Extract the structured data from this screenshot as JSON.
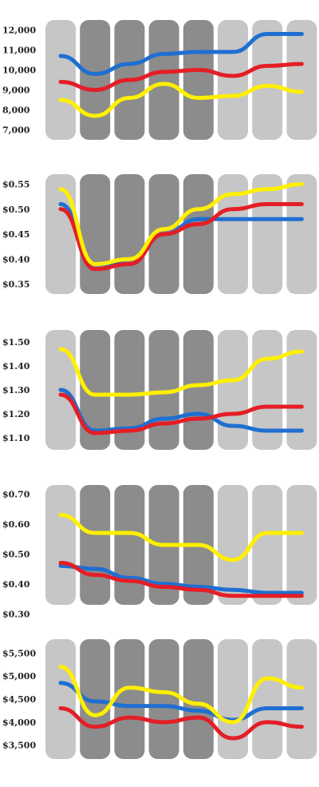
{
  "colors": {
    "light_column": "#c6c6c6",
    "dark_column": "#8c8c8c",
    "blue": "#1f6fd1",
    "red": "#e41e26",
    "yellow": "#ffef00",
    "title": "#e8401c"
  },
  "footer": "",
  "chart_data": [
    {
      "type": "line",
      "title": "",
      "ylim": [
        6500,
        12500
      ],
      "yticks": [
        "12,000",
        "11,000",
        "10,000",
        "9,000",
        "8,000",
        "7,000"
      ],
      "ytick_values": [
        12000,
        11000,
        10000,
        9000,
        8000,
        7000
      ],
      "x": [
        "",
        "",
        "",
        "",
        "",
        "",
        "",
        ""
      ],
      "series": [
        {
          "color": "blue",
          "values": [
            10700,
            9800,
            10300,
            10800,
            10900,
            10900,
            11800,
            11800
          ]
        },
        {
          "color": "red",
          "values": [
            9400,
            9000,
            9500,
            9900,
            10000,
            9700,
            10200,
            10300
          ]
        },
        {
          "color": "yellow",
          "values": [
            8500,
            7700,
            8600,
            9300,
            8600,
            8700,
            9200,
            8900
          ]
        }
      ]
    },
    {
      "type": "line",
      "title": "",
      "ylim": [
        0.33,
        0.57
      ],
      "yticks": [
        "$0.55",
        "$0.50",
        "$0.45",
        "$0.40",
        "$0.35"
      ],
      "ytick_values": [
        0.55,
        0.5,
        0.45,
        0.4,
        0.35
      ],
      "x": [
        "",
        "",
        "",
        "",
        "",
        "",
        "",
        ""
      ],
      "series": [
        {
          "color": "blue",
          "values": [
            0.51,
            0.39,
            0.39,
            0.45,
            0.48,
            0.48,
            0.48,
            0.48
          ]
        },
        {
          "color": "red",
          "values": [
            0.5,
            0.38,
            0.39,
            0.45,
            0.47,
            0.5,
            0.51,
            0.51
          ]
        },
        {
          "color": "yellow",
          "values": [
            0.54,
            0.39,
            0.4,
            0.46,
            0.5,
            0.53,
            0.54,
            0.55
          ]
        }
      ]
    },
    {
      "type": "line",
      "title": "",
      "ylim": [
        1.05,
        1.55
      ],
      "yticks": [
        "$1.50",
        "$1.40",
        "$1.30",
        "$1.20",
        "$1.10"
      ],
      "ytick_values": [
        1.5,
        1.4,
        1.3,
        1.2,
        1.1
      ],
      "x": [
        "",
        "",
        "",
        "",
        "",
        "",
        "",
        ""
      ],
      "series": [
        {
          "color": "blue",
          "values": [
            1.3,
            1.13,
            1.14,
            1.18,
            1.2,
            1.15,
            1.13,
            1.13
          ]
        },
        {
          "color": "red",
          "values": [
            1.28,
            1.12,
            1.13,
            1.16,
            1.18,
            1.2,
            1.23,
            1.23
          ]
        },
        {
          "color": "yellow",
          "values": [
            1.47,
            1.28,
            1.28,
            1.29,
            1.32,
            1.34,
            1.43,
            1.46
          ]
        }
      ]
    },
    {
      "type": "line",
      "title": "",
      "ylim": [
        0.33,
        0.73
      ],
      "yticks": [
        "$0.70",
        "$0.60",
        "$0.50",
        "$0.40",
        "$0.30"
      ],
      "ytick_values": [
        0.7,
        0.6,
        0.5,
        0.4,
        0.3
      ],
      "x": [
        "",
        "",
        "",
        "",
        "",
        "",
        "",
        ""
      ],
      "series": [
        {
          "color": "blue",
          "values": [
            0.46,
            0.45,
            0.42,
            0.4,
            0.39,
            0.38,
            0.37,
            0.37
          ]
        },
        {
          "color": "red",
          "values": [
            0.47,
            0.43,
            0.41,
            0.39,
            0.38,
            0.36,
            0.36,
            0.36
          ]
        },
        {
          "color": "yellow",
          "values": [
            0.63,
            0.57,
            0.57,
            0.53,
            0.53,
            0.48,
            0.57,
            0.57
          ]
        }
      ]
    },
    {
      "type": "line",
      "title": "",
      "ylim": [
        3200,
        5800
      ],
      "yticks": [
        "$5,500",
        "$5,000",
        "$4,500",
        "$4,000",
        "$3,500"
      ],
      "ytick_values": [
        5500,
        5000,
        4500,
        4000,
        3500
      ],
      "x": [
        "",
        "",
        "",
        "",
        "",
        "",
        "",
        ""
      ],
      "series": [
        {
          "color": "blue",
          "values": [
            4850,
            4450,
            4350,
            4350,
            4250,
            4050,
            4300,
            4300
          ]
        },
        {
          "color": "red",
          "values": [
            4300,
            3900,
            4100,
            4000,
            4100,
            3650,
            4000,
            3900
          ]
        },
        {
          "color": "yellow",
          "values": [
            5200,
            4150,
            4750,
            4650,
            4400,
            4000,
            4950,
            4750
          ]
        }
      ]
    }
  ]
}
